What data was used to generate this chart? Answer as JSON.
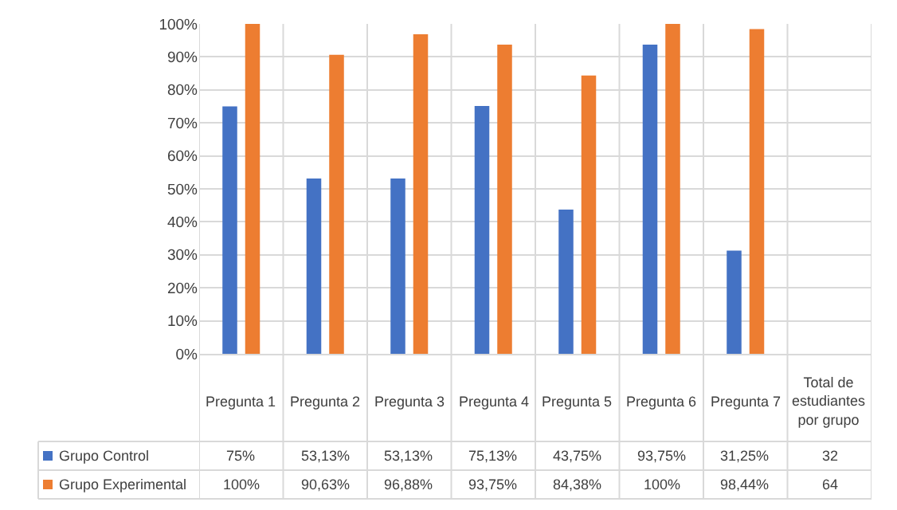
{
  "chart_data": {
    "type": "bar",
    "categories": [
      "Pregunta 1",
      "Pregunta 2",
      "Pregunta 3",
      "Pregunta 4",
      "Pregunta 5",
      "Pregunta 6",
      "Pregunta 7",
      "Total de estudiantes por grupo"
    ],
    "series": [
      {
        "name": "Grupo Control",
        "color": "#4472c4",
        "values": [
          75,
          53.13,
          53.13,
          75.13,
          43.75,
          93.75,
          31.25,
          null
        ],
        "value_labels": [
          "75%",
          "53,13%",
          "53,13%",
          "75,13%",
          "43,75%",
          "93,75%",
          "31,25%",
          "32"
        ]
      },
      {
        "name": "Grupo Experimental",
        "color": "#ed7d31",
        "values": [
          100,
          90.63,
          96.88,
          93.75,
          84.38,
          100,
          98.44,
          null
        ],
        "value_labels": [
          "100%",
          "90,63%",
          "96,88%",
          "93,75%",
          "84,38%",
          "100%",
          "98,44%",
          "64"
        ]
      }
    ],
    "ylim": [
      0,
      100
    ],
    "yticks": [
      {
        "value": 0,
        "label": "0%"
      },
      {
        "value": 10,
        "label": "10%"
      },
      {
        "value": 20,
        "label": "20%"
      },
      {
        "value": 30,
        "label": "30%"
      },
      {
        "value": 40,
        "label": "40%"
      },
      {
        "value": 50,
        "label": "50%"
      },
      {
        "value": 60,
        "label": "60%"
      },
      {
        "value": 70,
        "label": "70%"
      },
      {
        "value": 80,
        "label": "80%"
      },
      {
        "value": 90,
        "label": "90%"
      },
      {
        "value": 100,
        "label": "100%"
      }
    ],
    "grid": true,
    "legend": "bottom"
  }
}
